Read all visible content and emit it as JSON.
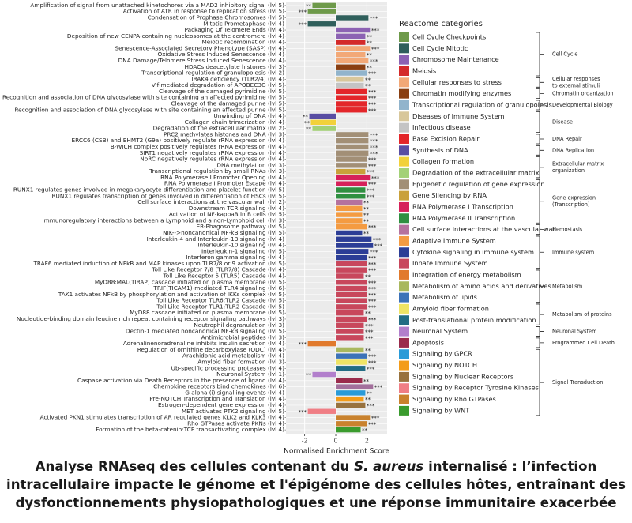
{
  "chart_data": {
    "type": "bar",
    "orientation": "horizontal",
    "x_label": "Normalised Enrichment Score",
    "xlim": [
      -3.2,
      3.3
    ],
    "xticks": [
      -2,
      0,
      2
    ],
    "grid": true,
    "categories": [
      "Amplification of signal from unattached  kinetochores via a MAD2 inhibitory signal (lvl 5)",
      "Activation of ATR in response to replication stress (lvl 5)",
      "Condensation of Prophase Chromosomes (lvl 5)",
      "Mitotic Prometaphase (lvl 4)",
      "Packaging Of Telomere Ends (lvl 4)",
      "Deposition of new CENPA-containing nucleosomes at the centromere (lvl 4)",
      "Meiotic recombination (lvl 4)",
      "Senescence-Associated Secretory Phenotype (SASP) (lvl 4)",
      "Oxidative Stress Induced Senescence (lvl 4)",
      "DNA Damage/Telomere Stress Induced Senescence (lvl 4)",
      "HDACs deacetylate histones (lvl 3)",
      "Transcriptional regulation of granulopoiesis (lvl 2)",
      "IRAK4 deficiency (TLR2/4) (lvl 4)",
      "Vif-mediated degradation of APOBEC3G (lvl 5)",
      "Cleavage of the damaged pyrimidine (lvl 5)",
      "Recognition and association of DNA glycosylase with site containing an affected pyrimidine (lvl 5)",
      "Cleavage of the damaged purine (lvl 5)",
      "Recognition and association of DNA glycosylase with site containing an affected purine (lvl 5)",
      "Unwinding of DNA (lvl 4)",
      "Collagen chain trimerization (lvl 4)",
      "Degradation of the extracellular matrix (lvl 2)",
      "PRC2 methylates histones and DNA (lvl 3)",
      "ERCC6 (CSB) and EHMT2 (G9a) positively regulate rRNA expression (lvl 4)",
      "B-WICH complex positively regulates rRNA expression (lvl 4)",
      "SIRT1 negatively regulates rRNA expression (lvl 4)",
      "NoRC negatively regulates rRNA expression (lvl 4)",
      "DNA methylation (lvl 3)",
      "Transcriptional regulation by small RNAs (lvl 3)",
      "RNA Polymerase I Promoter Opening (lvl 4)",
      "RNA Polymerase I Promoter Escape (lvl 4)",
      "RUNX1 regulates genes involved in megakaryocyte differentiation and platelet function (lvl 5)",
      "RUNX1 regulates transcription of genes involved in differentiation of HSCs (lvl 5)",
      "Cell surface interactions at the vascular wall (lvl 2)",
      "Downstream TCR signaling (lvl 4)",
      "Activation of NF-kappaB in B cells (lvl 5)",
      "Immunoregulatory interactions between a Lymphoid and a non-Lymphoid cell (lvl 3)",
      "ER-Phagosome pathway (lvl 5)",
      "NIK-->noncanonical NF-kB signaling (lvl 5)",
      "Interleukin-4 and Interleukin-13 signaling (lvl 4)",
      "Interleukin-10 signaling (lvl 4)",
      "Interleukin-1 signaling (lvl 5)",
      "Interferon gamma signaling (lvl 4)",
      "TRAF6 mediated induction of NFkB and MAP kinases upon TLR7/8 or 9 activation (lvl 5)",
      "Toll Like Receptor 7/8 (TLR7/8) Cascade (lvl 4)",
      "Toll Like Receptor 5 (TLR5) Cascade (lvl 4)",
      "MyD88:MAL(TIRAP) cascade initiated on plasma membrane (lvl 5)",
      "TRIF(TICAM1)-mediated TLR4 signaling (lvl 6)",
      "TAK1 activates NFkB by phosphorylation and activation of IKKs complex (lvl 5)",
      "Toll Like Receptor TLR6:TLR2 Cascade (lvl 5)",
      "Toll Like Receptor TLR1:TLR2 Cascade (lvl 5)",
      "MyD88 cascade initiated on plasma membrane (lvl 5)",
      "Nucleotide-binding domain leucine rich repeat containing receptor signaling pathways (lvl 3)",
      "Neutrophil degranulation (lvl 3)",
      "Dectin-1 mediated noncanonical NF-kB signaling (lvl 5)",
      "Antimicrobial peptides (lvl 3)",
      "Adrenalinenoradrenaline inhibits insulin secretion (lvl 4)",
      "Regulation of ornithine decarboxylase (ODC) (lvl 4)",
      "Arachidonic acid metabolism (lvl 4)",
      "Amyloid fiber formation (lvl 3)",
      "Ub-specific processing proteases (lvl 4)",
      "Neuronal System (lvl 1)",
      "Caspase activation via Death Receptors in the presence of ligand (lvl 4)",
      "Chemokine receptors bind chemokines (lvl 6)",
      "G alpha (i) signalling events (lvl 4)",
      "Pre-NOTCH Transcription and Translation (lvl 4)",
      "Estrogen-dependent gene expression (lvl 4)",
      "MET activates PTK2 signaling (lvl 5)",
      "Activated PKN1 stimulates transcription of AR regulated genes KLK2 and KLK3 (lvl 4)",
      "Rho GTPases activate PKNs (lvl 4)",
      "Formation of the beta-catenin:TCF transactivating complex (lvl 4)"
    ],
    "values": [
      -1.5,
      -1.8,
      2.1,
      -1.8,
      2.2,
      1.9,
      1.9,
      2.2,
      1.9,
      2.1,
      1.9,
      2.0,
      1.8,
      1.8,
      2.0,
      2.0,
      2.0,
      2.0,
      -1.7,
      -1.6,
      -1.5,
      2.1,
      2.1,
      2.1,
      2.1,
      2.0,
      2.0,
      1.9,
      2.2,
      2.0,
      1.9,
      1.9,
      1.7,
      1.7,
      1.7,
      1.7,
      2.0,
      1.7,
      2.3,
      2.4,
      2.1,
      2.0,
      2.0,
      2.0,
      1.8,
      2.0,
      2.0,
      2.0,
      2.0,
      2.0,
      1.8,
      2.0,
      1.8,
      1.8,
      1.8,
      -1.8,
      1.8,
      2.0,
      2.0,
      1.9,
      -1.5,
      1.7,
      2.4,
      1.9,
      1.8,
      1.9,
      -1.8,
      2.2,
      2.0,
      1.6
    ],
    "significance": [
      "**",
      "***",
      "***",
      "***",
      "***",
      "**",
      "**",
      "***",
      "**",
      "***",
      "**",
      "***",
      "**",
      "**",
      "***",
      "***",
      "***",
      "***",
      "**",
      "**",
      "**",
      "***",
      "***",
      "***",
      "***",
      "***",
      "***",
      "***",
      "***",
      "***",
      "***",
      "***",
      "**",
      "**",
      "**",
      "**",
      "***",
      "**",
      "***",
      "***",
      "***",
      "***",
      "***",
      "***",
      "**",
      "***",
      "***",
      "***",
      "***",
      "***",
      "**",
      "***",
      "***",
      "***",
      "***",
      "***",
      "**",
      "***",
      "***",
      "***",
      "**",
      "**",
      "***",
      "**",
      "**",
      "***",
      "***",
      "***",
      "***",
      "**"
    ],
    "colors": [
      "#6e9a4a",
      "#6e9a4a",
      "#2f5f5b",
      "#2f5f5b",
      "#8c62b3",
      "#8c62b3",
      "#d42a2a",
      "#f2a877",
      "#f2a877",
      "#f2a877",
      "#8a3f12",
      "#91b4cc",
      "#d8c79b",
      "#c4c4c4",
      "#e3262a",
      "#e3262a",
      "#e3262a",
      "#e3262a",
      "#5a4ea3",
      "#f2d13a",
      "#a3d177",
      "#a28f76",
      "#a28f76",
      "#a28f76",
      "#a28f76",
      "#a28f76",
      "#a28f76",
      "#c9a13a",
      "#d6215a",
      "#d6215a",
      "#2f8f40",
      "#2f8f40",
      "#b5729e",
      "#f49b42",
      "#f49b42",
      "#f49b42",
      "#f49b42",
      "#2c3d96",
      "#2c3d96",
      "#2c3d96",
      "#2c3d96",
      "#2c3d96",
      "#c8475c",
      "#c8475c",
      "#c8475c",
      "#c8475c",
      "#c8475c",
      "#c8475c",
      "#c8475c",
      "#c8475c",
      "#c8475c",
      "#c8475c",
      "#c8475c",
      "#c8475c",
      "#c8475c",
      "#e17a2d",
      "#a9b85e",
      "#3c72b8",
      "#efe465",
      "#236d84",
      "#b27fcc",
      "#9a2b4c",
      "#a3709c",
      "#2a9bd8",
      "#f39c1a",
      "#98723e",
      "#f07e85",
      "#c9822e",
      "#c9822e",
      "#3a9b2e"
    ],
    "legend": {
      "title": "Reactome categories",
      "groups": [
        {
          "label": [
            "Cell Cycle"
          ],
          "items": [
            {
              "name": "Cell Cycle Checkpoints",
              "color": "#6e9a4a"
            },
            {
              "name": "Cell Cycle Mitotic",
              "color": "#2f5f5b"
            },
            {
              "name": "Chromosome Maintenance",
              "color": "#8c62b3"
            },
            {
              "name": "Meiosis",
              "color": "#d42a2a"
            }
          ]
        },
        {
          "label": [
            "Cellular responses",
            "to external stimuli"
          ],
          "items": [
            {
              "name": "Cellular responses to stress",
              "color": "#f2a877"
            }
          ]
        },
        {
          "label": [
            "Chromatin organization"
          ],
          "items": [
            {
              "name": "Chromatin modifying enzymes",
              "color": "#8a3f12"
            }
          ]
        },
        {
          "label": [
            "Developmental Biology"
          ],
          "items": [
            {
              "name": "Transcriptional regulation of granulopoiesis",
              "color": "#91b4cc"
            }
          ]
        },
        {
          "label": [
            "Disease"
          ],
          "items": [
            {
              "name": "Diseases of Immune System",
              "color": "#d8c79b"
            },
            {
              "name": "Infectious disease",
              "color": "#c4c4c4"
            }
          ]
        },
        {
          "label": [
            "DNA Repair"
          ],
          "items": [
            {
              "name": "Base Excision Repair",
              "color": "#e3262a"
            }
          ]
        },
        {
          "label": [
            "DNA Replication"
          ],
          "items": [
            {
              "name": "Synthesis of DNA",
              "color": "#5a4ea3"
            }
          ]
        },
        {
          "label": [
            "Extracellular matrix",
            "organization"
          ],
          "items": [
            {
              "name": "Collagen formation",
              "color": "#f2d13a"
            },
            {
              "name": "Degradation of the extracellular matrix",
              "color": "#a3d177"
            }
          ]
        },
        {
          "label": [
            "Gene expression",
            "(Transcription)"
          ],
          "items": [
            {
              "name": "Epigenetic regulation of gene expression",
              "color": "#a28f76"
            },
            {
              "name": "Gene Silencing by RNA",
              "color": "#c9a13a"
            },
            {
              "name": "RNA Polymerase I Transcription",
              "color": "#d6215a"
            },
            {
              "name": "RNA Polymerase II Transcription",
              "color": "#2f8f40"
            }
          ]
        },
        {
          "label": [
            "Hemostasis"
          ],
          "items": [
            {
              "name": "Cell surface interactions at the vascular wall",
              "color": "#b5729e"
            }
          ]
        },
        {
          "label": [
            "Immune system"
          ],
          "items": [
            {
              "name": "Adaptive Immune System",
              "color": "#f49b42"
            },
            {
              "name": "Cytokine signaling in immune system",
              "color": "#2c3d96"
            },
            {
              "name": "Innate Immune System",
              "color": "#c8475c"
            }
          ]
        },
        {
          "label": [
            "Metabolism"
          ],
          "items": [
            {
              "name": "Integration of energy metabolism",
              "color": "#e17a2d"
            },
            {
              "name": "Metabolism of amino acids and derivatives",
              "color": "#a9b85e"
            },
            {
              "name": "Metabolism of lipids",
              "color": "#3c72b8"
            }
          ]
        },
        {
          "label": [
            "Metabolism of proteins"
          ],
          "items": [
            {
              "name": "Amyloid fiber formation",
              "color": "#efe465"
            },
            {
              "name": "Post-translational protein modification",
              "color": "#236d84"
            }
          ]
        },
        {
          "label": [
            "Neuronal System"
          ],
          "items": [
            {
              "name": "Neuronal System",
              "color": "#b27fcc"
            }
          ]
        },
        {
          "label": [
            "Programmed Cell Death"
          ],
          "items": [
            {
              "name": "Apoptosis",
              "color": "#9a2b4c"
            }
          ]
        },
        {
          "label": [
            "Signal Transduction"
          ],
          "items": [
            {
              "name": "Signaling by GPCR",
              "color": "#2a9bd8"
            },
            {
              "name": "Signaling by NOTCH",
              "color": "#f39c1a"
            },
            {
              "name": "Signaling by Nuclear Receptors",
              "color": "#98723e"
            },
            {
              "name": "Signaling by Receptor Tyrosine Kinases",
              "color": "#f07e85"
            },
            {
              "name": "Signaling by Rho GTPases",
              "color": "#c9822e"
            },
            {
              "name": "Signaling by WNT",
              "color": "#3a9b2e"
            }
          ]
        }
      ]
    }
  },
  "caption": [
    "Analyse RNAseq des cellules contenant du ",
    "S. aureus",
    " internalisé : l’infection intracellulaire impacte le génome et l'épigénome des cellules hôtes, entraînant des dysfonctionnements physiopathologiques et une réponse immunitaire exacerbée"
  ]
}
